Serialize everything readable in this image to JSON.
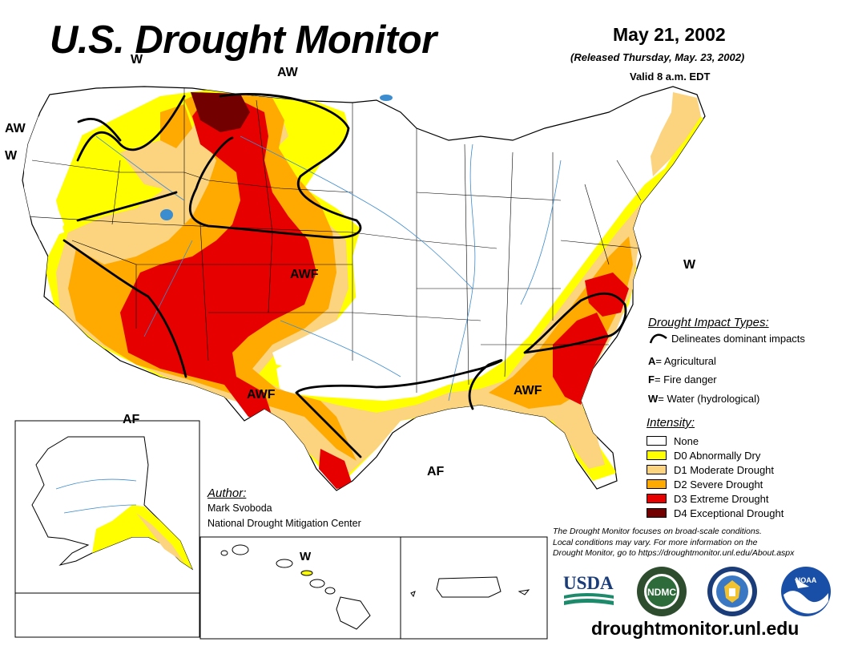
{
  "header": {
    "title": "U.S. Drought Monitor",
    "date": "May 21, 2002",
    "released": "(Released Thursday, May. 23, 2002)",
    "valid": "Valid 8 a.m. EDT"
  },
  "map_labels": {
    "w_nw_top": "W",
    "aw_north": "AW",
    "aw_west": "AW",
    "w_west": "W",
    "awf_center": "AWF",
    "awf_southwest": "AWF",
    "awf_southeast": "AWF",
    "w_east": "W",
    "af_gulf": "AF",
    "af_southwest": "AF",
    "w_hawaii": "W"
  },
  "impact_types": {
    "heading": "Drought Impact Types:",
    "delineates": "Delineates dominant impacts",
    "items": [
      {
        "letter": "A",
        "text": " = Agricultural"
      },
      {
        "letter": "F",
        "text": " = Fire danger"
      },
      {
        "letter": "W",
        "text": " = Water (hydrological)"
      }
    ]
  },
  "intensity": {
    "heading": "Intensity:",
    "items": [
      {
        "label": "None",
        "color": "#ffffff"
      },
      {
        "label": "D0 Abnormally Dry",
        "color": "#ffff00"
      },
      {
        "label": "D1 Moderate Drought",
        "color": "#fcd37f"
      },
      {
        "label": "D2 Severe Drought",
        "color": "#ffaa00"
      },
      {
        "label": "D3 Extreme Drought",
        "color": "#e60000"
      },
      {
        "label": "D4 Exceptional Drought",
        "color": "#730000"
      }
    ]
  },
  "author": {
    "heading": "Author:",
    "name": "Mark Svoboda",
    "org": "National Drought Mitigation Center"
  },
  "disclaimer": [
    "The Drought Monitor focuses on broad-scale conditions.",
    "Local conditions may vary. For more information on the",
    "Drought Monitor, go to https://droughtmonitor.unl.edu/About.aspx"
  ],
  "logos": {
    "usda": "USDA",
    "ndmc": "NDMC",
    "commerce": "commerce-seal-icon",
    "noaa": "NOAA"
  },
  "website": "droughtmonitor.unl.edu"
}
